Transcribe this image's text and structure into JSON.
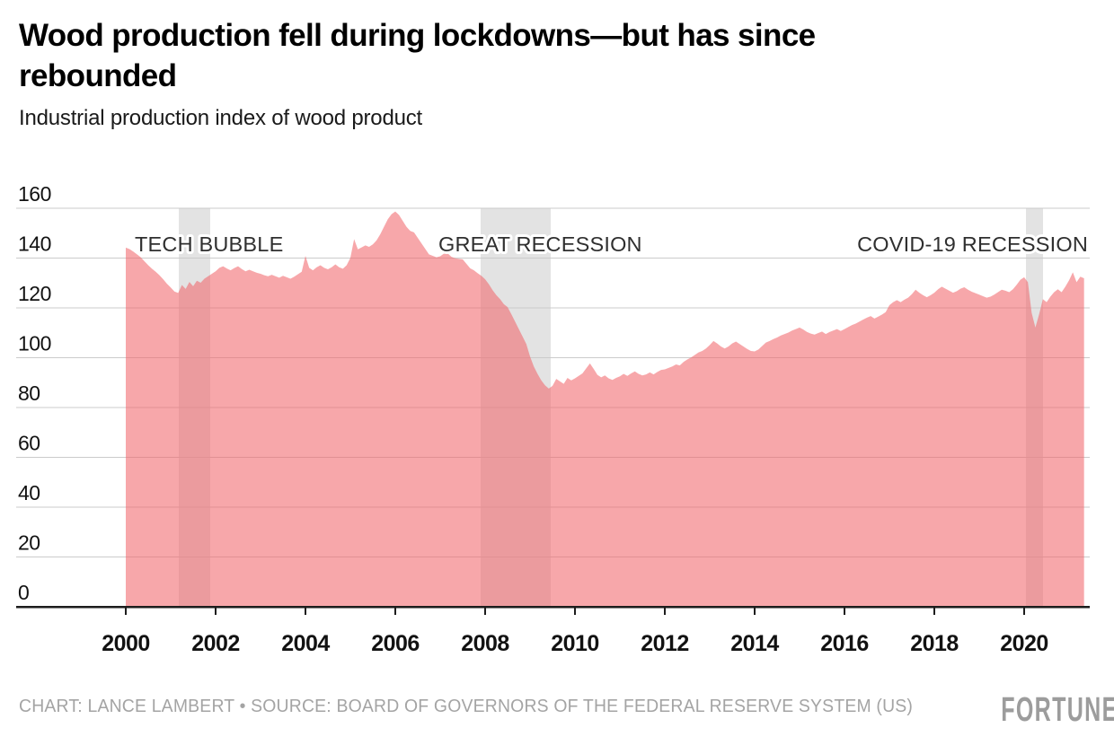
{
  "header": {
    "title": "Wood production fell during lockdowns—but has since rebounded",
    "title_lines": [
      "Wood production fell during lockdowns—but has since",
      "rebounded"
    ],
    "subtitle": "Industrial production index of wood product"
  },
  "footer": {
    "credit": "CHART: LANCE LAMBERT • SOURCE: BOARD OF GOVERNORS OF THE FEDERAL RESERVE SYSTEM (US)",
    "brand": "FORTUNE"
  },
  "chart_data": {
    "type": "area",
    "title": "Wood production fell during lockdowns—but has since rebounded",
    "subtitle": "Industrial production index of wood product",
    "x_start_year": 2000,
    "x_step_months": 1,
    "x_ticks": [
      2000,
      2002,
      2004,
      2006,
      2008,
      2010,
      2012,
      2014,
      2016,
      2018,
      2020
    ],
    "y_ticks": [
      0,
      20,
      40,
      60,
      80,
      100,
      120,
      140,
      160
    ],
    "ylim": [
      0,
      160
    ],
    "grid": true,
    "legend": "none",
    "series": [
      {
        "name": "Industrial production index of wood product",
        "values_monthly": [
          144.2,
          143.6,
          142.6,
          141.5,
          140.3,
          138.7,
          137.1,
          135.7,
          134.5,
          133.1,
          131.5,
          129.7,
          128.2,
          126.6,
          126.0,
          129.2,
          127.6,
          130.4,
          128.7,
          130.9,
          130.1,
          131.7,
          132.7,
          133.7,
          134.7,
          136.1,
          136.7,
          135.8,
          135.1,
          136.0,
          136.7,
          135.6,
          134.7,
          135.3,
          134.7,
          134.1,
          133.7,
          133.1,
          132.7,
          133.3,
          132.7,
          132.1,
          132.9,
          132.3,
          131.7,
          132.5,
          133.5,
          134.5,
          140.9,
          136.1,
          135.1,
          136.3,
          137.1,
          136.1,
          135.5,
          136.3,
          137.5,
          136.3,
          135.7,
          137.1,
          140.1,
          147.6,
          143.5,
          144.3,
          145.1,
          144.5,
          145.5,
          147.1,
          149.6,
          152.6,
          155.6,
          157.6,
          158.7,
          157.3,
          154.9,
          152.5,
          150.9,
          150.3,
          148.1,
          145.9,
          143.7,
          141.5,
          140.9,
          140.3,
          140.7,
          141.8,
          141.9,
          140.5,
          139.9,
          139.7,
          139.5,
          137.7,
          135.9,
          135.1,
          133.9,
          132.9,
          131.5,
          129.5,
          127.1,
          125.1,
          123.5,
          121.5,
          120.3,
          117.5,
          114.5,
          111.5,
          108.5,
          105.5,
          100.5,
          96.5,
          93.5,
          90.9,
          88.9,
          87.6,
          88.7,
          91.5,
          90.5,
          89.5,
          91.9,
          90.9,
          91.7,
          92.7,
          93.7,
          95.7,
          97.7,
          95.5,
          93.1,
          92.1,
          92.9,
          91.7,
          91.1,
          91.9,
          92.5,
          93.5,
          92.7,
          93.7,
          94.5,
          93.5,
          92.9,
          93.3,
          94.1,
          93.3,
          94.3,
          95.1,
          95.3,
          95.9,
          96.5,
          97.3,
          96.9,
          98.3,
          99.3,
          100.1,
          101.1,
          102.1,
          102.7,
          103.7,
          105.1,
          106.7,
          105.7,
          104.5,
          103.7,
          104.5,
          105.7,
          106.5,
          105.5,
          104.5,
          103.5,
          102.7,
          102.5,
          103.3,
          104.7,
          106.1,
          106.7,
          107.5,
          108.1,
          108.9,
          109.5,
          110.1,
          110.9,
          111.5,
          112.1,
          111.3,
          110.3,
          109.7,
          109.3,
          109.9,
          110.5,
          109.5,
          110.3,
          110.9,
          111.5,
          110.7,
          111.5,
          112.3,
          113.1,
          113.7,
          114.5,
          115.3,
          116.1,
          116.7,
          115.7,
          116.5,
          117.3,
          118.3,
          121.1,
          122.3,
          123.1,
          122.3,
          123.3,
          124.1,
          125.5,
          127.3,
          126.1,
          125.1,
          124.3,
          125.1,
          126.1,
          127.5,
          128.5,
          127.7,
          126.9,
          126.1,
          126.7,
          127.7,
          128.3,
          127.3,
          126.5,
          125.9,
          125.3,
          124.7,
          124.1,
          124.5,
          125.3,
          126.3,
          127.3,
          126.9,
          126.3,
          127.5,
          129.3,
          131.3,
          132.3,
          130.3,
          118.0,
          112.1,
          117.5,
          123.5,
          122.3,
          124.5,
          126.3,
          127.5,
          126.3,
          128.5,
          131.1,
          134.3,
          130.3,
          132.5,
          131.9
        ]
      }
    ],
    "recession_bands": [
      {
        "label": "TECH BUBBLE",
        "from": 2001.18,
        "to": 2001.88
      },
      {
        "label": "GREAT RECESSION",
        "from": 2007.9,
        "to": 2009.46
      },
      {
        "label": "COVID-19 RECESSION",
        "from": 2020.04,
        "to": 2020.42
      }
    ],
    "colors": {
      "area": "rgba(242,103,109,0.58)",
      "band": "#e3e3e3",
      "grid": "#cbcbcb",
      "axis": "#1d1d1d",
      "tick_label": "#121212",
      "annotation": "#2f2f2f",
      "footer_gray": "#a4a4a4"
    }
  }
}
